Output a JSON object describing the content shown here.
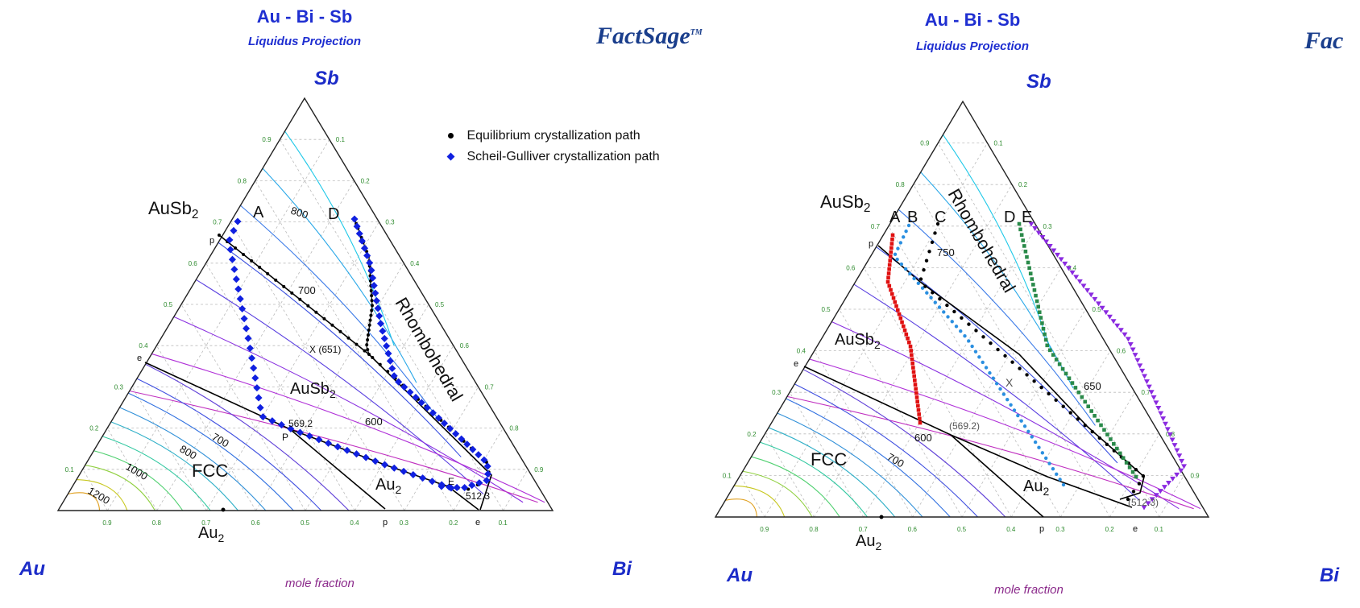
{
  "panels": [
    {
      "title": "Au - Bi - Sb",
      "subtitle": "Liquidus Projection",
      "logo_text": "FactSage",
      "logo_tm": "TM",
      "vertices": {
        "top": "Sb",
        "left": "Au",
        "right": "Bi"
      },
      "axis_caption": "mole fraction",
      "phases": [
        "AuSb2",
        "FCC",
        "Au2Bi",
        "Rhombohedral"
      ],
      "isotherm_labels": [
        "800",
        "700",
        "600",
        "700",
        "800",
        "1000",
        "1200"
      ],
      "points": [
        "A",
        "D",
        "p",
        "e",
        "X (651)",
        "569.2",
        "P",
        "E",
        "512.3",
        "p",
        "e"
      ],
      "legend": [
        {
          "label": "Equilibrium crystallization path",
          "marker": "dot",
          "color": "#000000"
        },
        {
          "label": "Scheil-Gulliver crystallization path",
          "marker": "diamond",
          "color": "#1020e0"
        }
      ],
      "ticks_left": [
        "0.1",
        "0.2",
        "0.3",
        "0.4",
        "0.5",
        "0.6",
        "0.7",
        "0.8",
        "0.9"
      ],
      "ticks_right": [
        "0.1",
        "0.2",
        "0.3",
        "0.4",
        "0.5",
        "0.6",
        "0.7",
        "0.8",
        "0.9"
      ],
      "ticks_bottom": [
        "0.9",
        "0.8",
        "0.7",
        "0.6",
        "0.5",
        "0.4",
        "0.3",
        "0.2",
        "0.1"
      ]
    },
    {
      "title": "Au - Bi - Sb",
      "subtitle": "Liquidus Projection",
      "logo_text": "Fac",
      "vertices": {
        "top": "Sb",
        "left": "Au",
        "right": "Bi"
      },
      "axis_caption": "mole fraction",
      "phases": [
        "AuSb2",
        "AuSb2",
        "FCC",
        "Au2Bi",
        "Rhombohedral"
      ],
      "isotherm_labels": [
        "750",
        "650",
        "600",
        "700"
      ],
      "points": [
        "A",
        "B",
        "C",
        "D",
        "E",
        "p",
        "e",
        "X",
        "(569.2)",
        "(512.3)",
        "p",
        "e"
      ],
      "ticks_left": [
        "0.1",
        "0.2",
        "0.3",
        "0.4",
        "0.5",
        "0.6",
        "0.7",
        "0.8",
        "0.9"
      ],
      "ticks_right": [
        "0.1",
        "0.2",
        "0.3",
        "0.4",
        "0.5",
        "0.6",
        "0.7",
        "0.8",
        "0.9"
      ],
      "ticks_bottom": [
        "0.9",
        "0.8",
        "0.7",
        "0.6",
        "0.5",
        "0.4",
        "0.3",
        "0.2",
        "0.1"
      ]
    }
  ],
  "colors": {
    "title": "#1f2fd1",
    "tick": "#2e8b2e",
    "caption": "#8b2a8b",
    "equilibrium": "#000000",
    "scheil": "#1020e0",
    "pathA": "#e01010",
    "pathB": "#2a8fe0",
    "pathC": "#000000",
    "pathD": "#2a8a4a",
    "pathE": "#8a2ae0"
  }
}
